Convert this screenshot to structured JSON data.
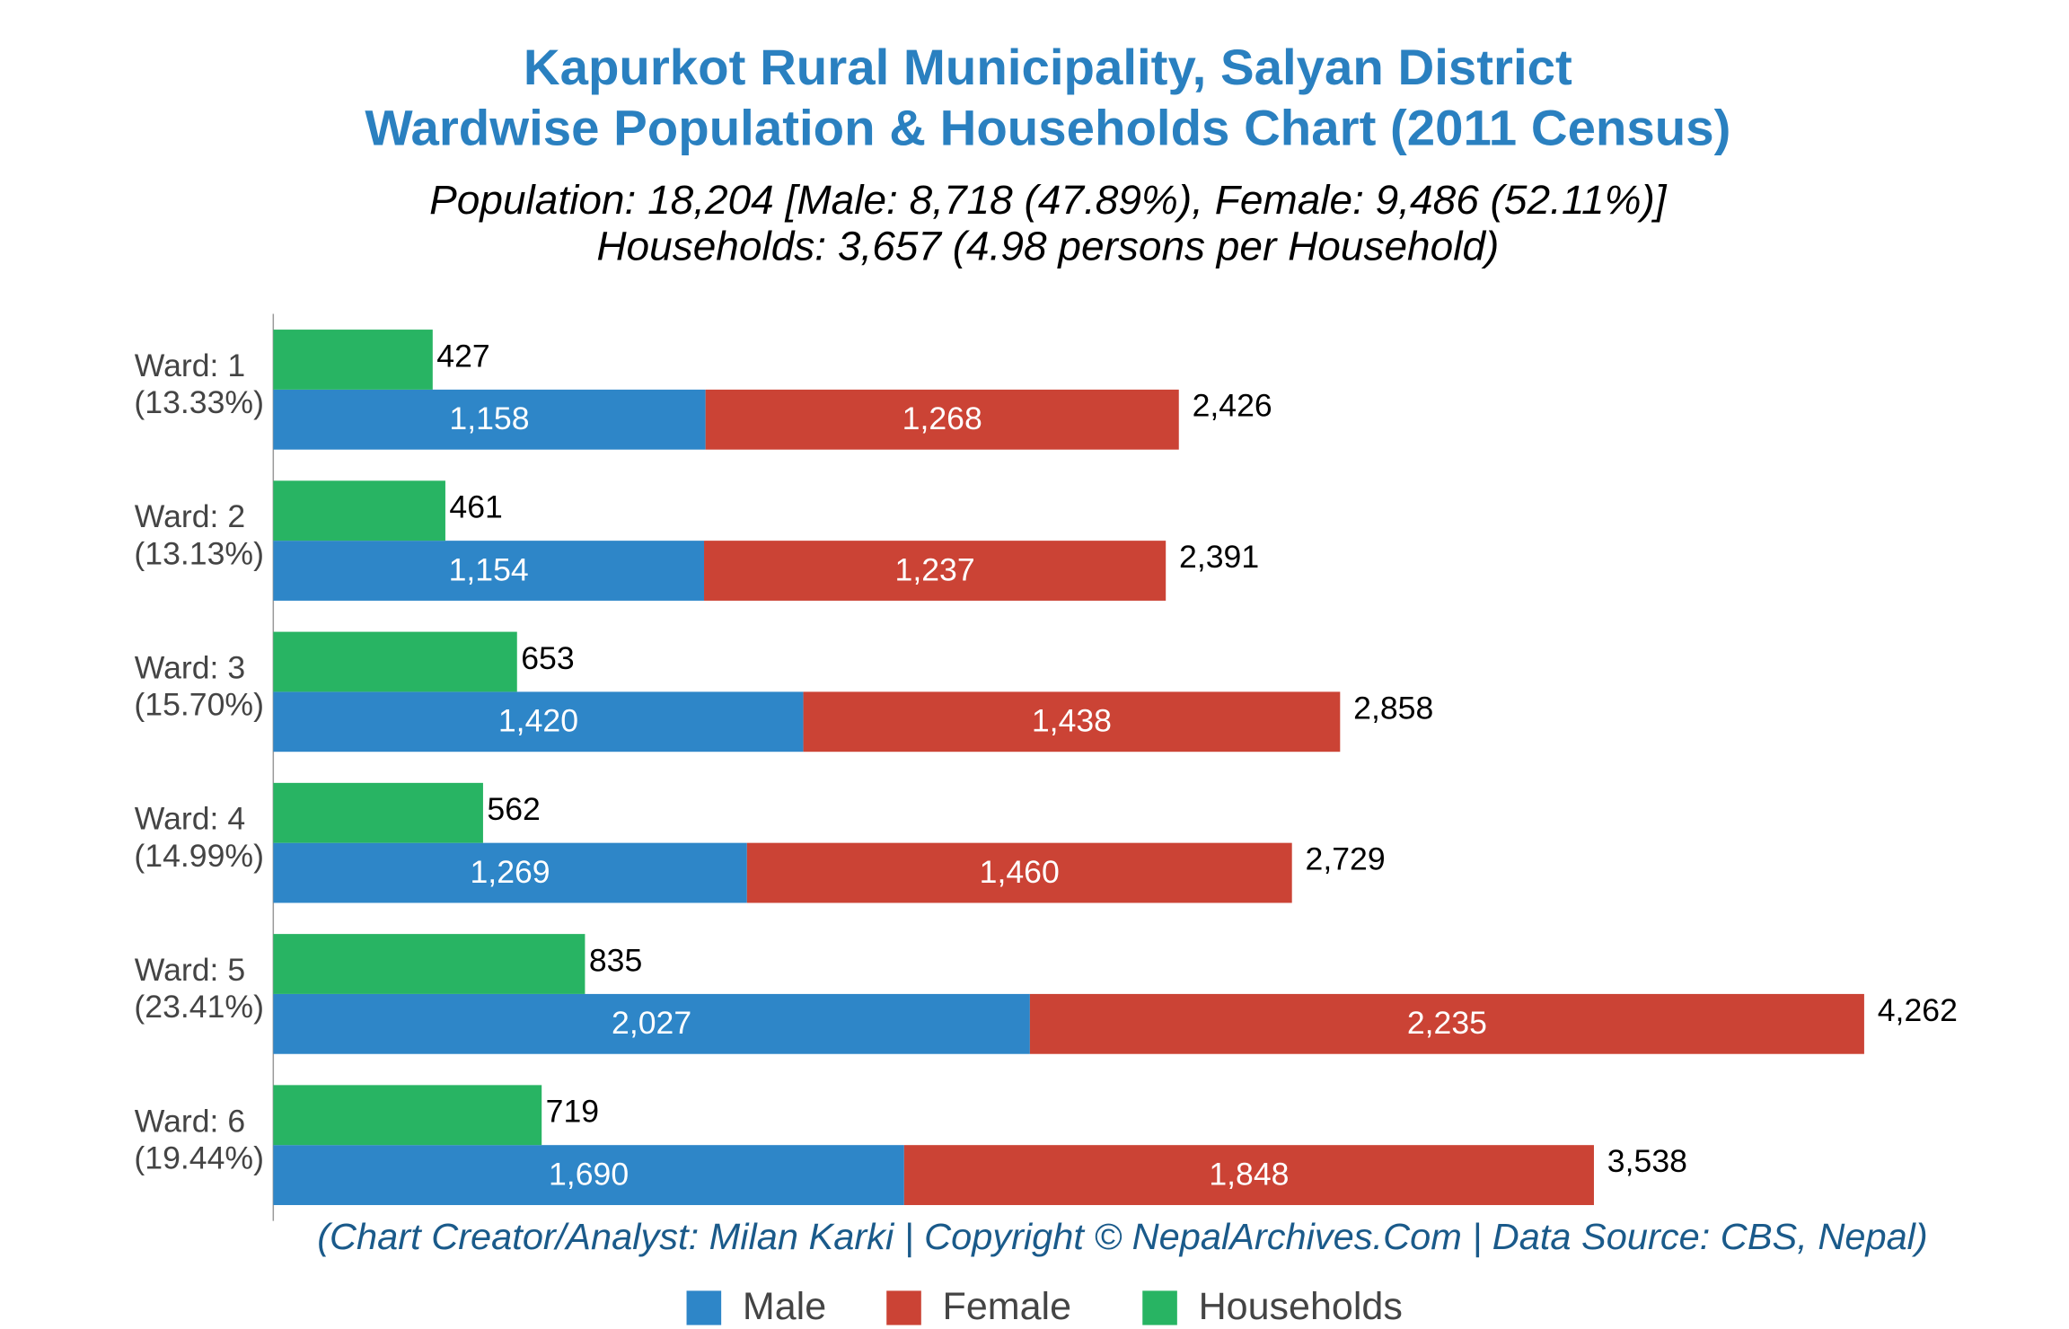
{
  "chart_data": {
    "type": "bar",
    "orientation": "horizontal",
    "title": [
      "Kapurkot Rural Municipality, Salyan District",
      "Wardwise Population & Households Chart (2011 Census)"
    ],
    "subtitle": [
      "Population: 18,204 [Male: 8,718 (47.89%), Female: 9,486 (52.11%)]",
      "Households: 3,657 (4.98 persons per Household)"
    ],
    "footer": "(Chart Creator/Analyst: Milan Karki | Copyright © NepalArchives.Com | Data Source: CBS, Nepal)",
    "categories": [
      "Ward: 1",
      "Ward: 2",
      "Ward: 3",
      "Ward: 4",
      "Ward: 5",
      "Ward: 6"
    ],
    "category_shares": [
      "(13.33%)",
      "(13.13%)",
      "(15.70%)",
      "(14.99%)",
      "(23.41%)",
      "(19.44%)"
    ],
    "series": [
      {
        "name": "Male",
        "color": "#2e86c8",
        "stack": "population",
        "values": [
          1158,
          1154,
          1420,
          1269,
          2027,
          1690
        ],
        "value_labels": [
          "1,158",
          "1,154",
          "1,420",
          "1,269",
          "2,027",
          "1,690"
        ]
      },
      {
        "name": "Female",
        "color": "#cb4335",
        "stack": "population",
        "values": [
          1268,
          1237,
          1438,
          1460,
          2235,
          1848
        ],
        "value_labels": [
          "1,268",
          "1,237",
          "1,438",
          "1,460",
          "2,235",
          "1,848"
        ]
      },
      {
        "name": "Households",
        "color": "#28b463",
        "stack": "households",
        "values": [
          427,
          461,
          653,
          562,
          835,
          719
        ]
      }
    ],
    "totals": {
      "values": [
        2426,
        2391,
        2858,
        2729,
        4262,
        3538
      ],
      "value_labels": [
        "2,426",
        "2,391",
        "2,858",
        "2,729",
        "4,262",
        "3,538"
      ]
    },
    "xlim": [
      0,
      4800
    ],
    "legend": "bottom"
  }
}
